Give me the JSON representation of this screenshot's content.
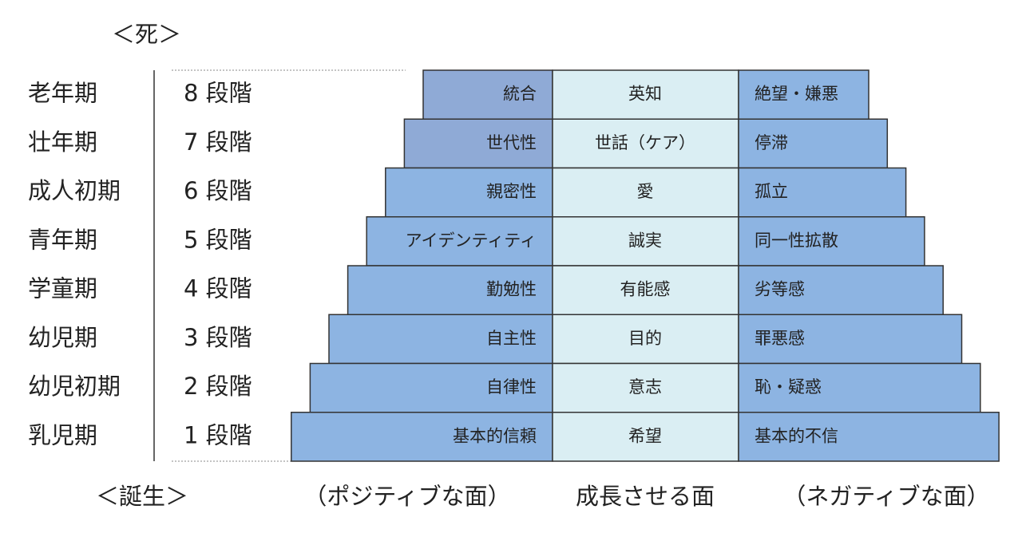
{
  "header": {
    "death": "＜死＞"
  },
  "stages": [
    {
      "period": "老年期",
      "stage": "8 段階",
      "positive": "統合",
      "virtue": "英知",
      "negative": "絶望・嫌悪"
    },
    {
      "period": "壮年期",
      "stage": "7 段階",
      "positive": "世代性",
      "virtue": "世話（ケア）",
      "negative": "停滞"
    },
    {
      "period": "成人初期",
      "stage": "6 段階",
      "positive": "親密性",
      "virtue": "愛",
      "negative": "孤立"
    },
    {
      "period": "青年期",
      "stage": "5 段階",
      "positive": "アイデンティティ",
      "virtue": "誠実",
      "negative": "同一性拡散"
    },
    {
      "period": "学童期",
      "stage": "4 段階",
      "positive": "勤勉性",
      "virtue": "有能感",
      "negative": "劣等感"
    },
    {
      "period": "幼児期",
      "stage": "3 段階",
      "positive": "自主性",
      "virtue": "目的",
      "negative": "罪悪感"
    },
    {
      "period": "幼児初期",
      "stage": "2 段階",
      "positive": "自律性",
      "virtue": "意志",
      "negative": "恥・疑惑"
    },
    {
      "period": "乳児期",
      "stage": "1 段階",
      "positive": "基本的信頼",
      "virtue": "希望",
      "negative": "基本的不信"
    }
  ],
  "footer": {
    "birth": "＜誕生＞",
    "positive": "（ポジティブな面）",
    "virtue": "成長させる面",
    "negative": "（ネガティブな面）"
  }
}
